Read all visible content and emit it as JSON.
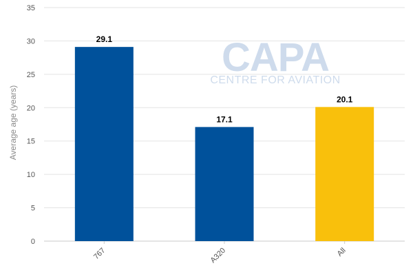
{
  "chart_data": {
    "type": "bar",
    "title": "",
    "xlabel": "",
    "ylabel": "Average age (years)",
    "categories": [
      "767",
      "A320",
      "All"
    ],
    "values": [
      29.1,
      17.1,
      20.1
    ],
    "data_labels": [
      "29.1",
      "17.1",
      "20.1"
    ],
    "bar_colors": [
      "#00519b",
      "#00519b",
      "#f9c00c"
    ],
    "ylim": [
      0,
      35
    ],
    "yticks": [
      0,
      5,
      10,
      15,
      20,
      25,
      30,
      35
    ],
    "grid": true,
    "legend": "none"
  },
  "watermark": {
    "brand": "CAPA",
    "tagline": "CENTRE FOR AVIATION"
  }
}
